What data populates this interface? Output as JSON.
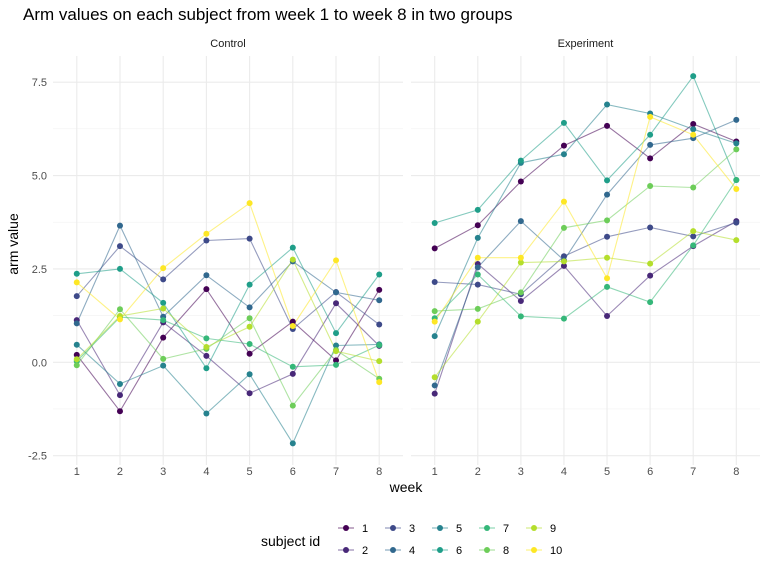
{
  "chart_data": {
    "type": "line",
    "title": "Arm values on each subject from week 1 to week 8 in two groups",
    "xlabel": "week",
    "ylabel": "arm value",
    "x": [
      1,
      2,
      3,
      4,
      5,
      6,
      7,
      8
    ],
    "x_ticks": [
      "1",
      "2",
      "3",
      "4",
      "5",
      "6",
      "7",
      "8"
    ],
    "ylim": [
      -2.75,
      8.2
    ],
    "y_ticks": [
      -2.5,
      0.0,
      2.5,
      5.0,
      7.5
    ],
    "y_tick_labels": [
      "-2.5",
      "0.0",
      "2.5",
      "5.0",
      "7.5"
    ],
    "grid": true,
    "legend": {
      "title": "subject id",
      "placement": "bottom",
      "entries": [
        {
          "label": "1",
          "color": "#440154"
        },
        {
          "label": "2",
          "color": "#482878"
        },
        {
          "label": "3",
          "color": "#3E4A89"
        },
        {
          "label": "4",
          "color": "#31688E"
        },
        {
          "label": "5",
          "color": "#26828E"
        },
        {
          "label": "6",
          "color": "#1F9E89"
        },
        {
          "label": "7",
          "color": "#35B779"
        },
        {
          "label": "8",
          "color": "#6DCD59"
        },
        {
          "label": "9",
          "color": "#B4DE2C"
        },
        {
          "label": "10",
          "color": "#FDE725"
        }
      ]
    },
    "panels": [
      {
        "name": "Control",
        "series": [
          {
            "values": [
              0.2,
              -1.31,
              0.66,
              1.96,
              0.23,
              1.09,
              0.05,
              1.94
            ]
          },
          {
            "values": [
              1.13,
              -0.88,
              1.07,
              0.17,
              -0.83,
              -0.31,
              1.58,
              0.44
            ]
          },
          {
            "values": [
              1.77,
              3.11,
              2.22,
              3.26,
              3.31,
              0.89,
              1.88,
              1.01
            ]
          },
          {
            "values": [
              1.04,
              3.66,
              1.22,
              2.33,
              1.47,
              2.7,
              1.87,
              1.66
            ]
          },
          {
            "values": [
              0.47,
              -0.58,
              -0.09,
              -1.37,
              -0.32,
              -2.17,
              0.45,
              0.48
            ]
          },
          {
            "values": [
              2.37,
              2.5,
              1.59,
              -0.16,
              2.08,
              3.07,
              0.78,
              2.35
            ]
          },
          {
            "values": [
              0.03,
              1.21,
              1.13,
              0.64,
              0.49,
              -0.12,
              -0.07,
              0.46
            ]
          },
          {
            "values": [
              -0.08,
              1.42,
              0.09,
              0.36,
              1.18,
              -1.16,
              0.33,
              -0.44
            ]
          },
          {
            "values": [
              0.08,
              1.24,
              1.44,
              0.41,
              0.95,
              2.75,
              0.3,
              0.03
            ]
          },
          {
            "values": [
              2.14,
              1.15,
              2.52,
              3.44,
              4.26,
              0.97,
              2.73,
              -0.53
            ]
          }
        ]
      },
      {
        "name": "Experiment",
        "series": [
          {
            "values": [
              3.05,
              3.67,
              4.84,
              5.8,
              6.33,
              5.46,
              6.38,
              5.91
            ]
          },
          {
            "values": [
              -0.84,
              2.63,
              1.64,
              2.58,
              1.24,
              2.32,
              3.11,
              3.78
            ]
          },
          {
            "values": [
              2.15,
              2.08,
              1.82,
              2.84,
              3.36,
              3.61,
              3.37,
              3.74
            ]
          },
          {
            "values": [
              -0.62,
              2.54,
              3.78,
              2.73,
              4.49,
              5.82,
              6.0,
              6.49
            ]
          },
          {
            "values": [
              0.7,
              3.33,
              5.34,
              5.57,
              6.9,
              6.66,
              6.24,
              5.86
            ]
          },
          {
            "values": [
              3.73,
              4.08,
              5.4,
              6.41,
              4.87,
              6.09,
              7.66,
              4.88
            ]
          },
          {
            "values": [
              1.18,
              2.35,
              1.23,
              1.17,
              2.02,
              1.61,
              3.13,
              4.88
            ]
          },
          {
            "values": [
              1.37,
              1.43,
              1.87,
              3.6,
              3.8,
              4.72,
              4.68,
              5.7
            ]
          },
          {
            "values": [
              -0.4,
              1.09,
              2.67,
              2.7,
              2.8,
              2.64,
              3.51,
              3.27
            ]
          },
          {
            "values": [
              1.09,
              2.8,
              2.8,
              4.3,
              2.25,
              6.57,
              6.09,
              4.64
            ]
          }
        ]
      }
    ]
  }
}
